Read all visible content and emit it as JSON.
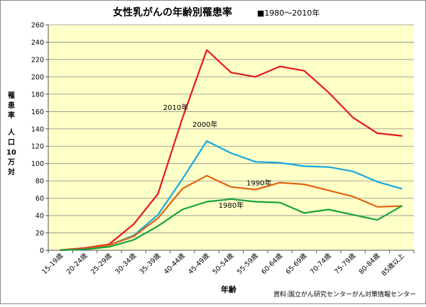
{
  "chart_data": {
    "type": "line",
    "title": "女性乳がんの年齢別罹患率",
    "legend_note": "■1980〜2010年",
    "ylabel_chars": [
      "罹",
      "患",
      "率",
      "",
      "人",
      "口",
      "10",
      "万",
      "対"
    ],
    "xlabel": "年齢",
    "source": "資料:国立がん研究センターがん対策情報センター",
    "ylim": [
      0,
      260
    ],
    "yticks": [
      0,
      20,
      40,
      60,
      80,
      100,
      120,
      140,
      160,
      180,
      200,
      220,
      240,
      260
    ],
    "categories": [
      "15-19歳",
      "20-24歳",
      "25-29歳",
      "30-34歳",
      "35-39歳",
      "40-44歳",
      "45-49歳",
      "50-54歳",
      "55-59歳",
      "60-64歳",
      "65-69歳",
      "70-74歳",
      "75-79歳",
      "80-84歳",
      "85歳以上"
    ],
    "series": [
      {
        "name": "2010年",
        "color": "#e8161c",
        "values": [
          0.3,
          2.5,
          7,
          30,
          65,
          152,
          231,
          205,
          200,
          212,
          207,
          182,
          153,
          135,
          132
        ]
      },
      {
        "name": "2000年",
        "color": "#15a9e1",
        "values": [
          0.2,
          1.5,
          6,
          17,
          41,
          82,
          126,
          112,
          102,
          101,
          97,
          96,
          91,
          79,
          71
        ]
      },
      {
        "name": "1990年",
        "color": "#e2620d",
        "values": [
          0.2,
          1.5,
          6,
          16,
          37,
          71,
          86,
          73,
          70,
          78,
          76,
          69,
          62,
          50,
          51
        ]
      },
      {
        "name": "1980年",
        "color": "#16a23c",
        "values": [
          0.1,
          1,
          4,
          12,
          28,
          47,
          56,
          59,
          56,
          55,
          43,
          47,
          41,
          35,
          51
        ]
      }
    ]
  }
}
